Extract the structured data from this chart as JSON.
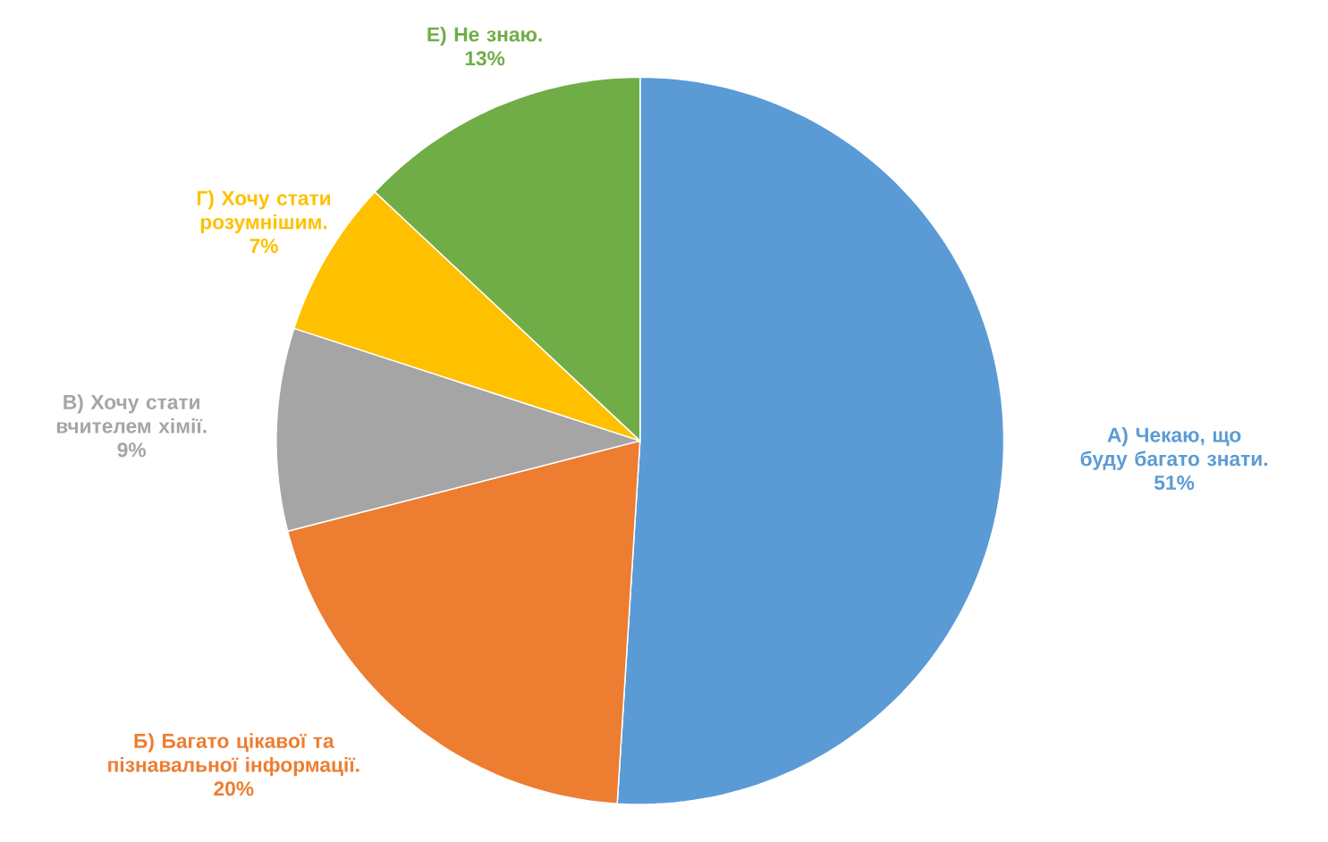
{
  "chart_data": {
    "type": "pie",
    "categories": [
      "А) Чекаю, що буду багато знати.",
      "Б) Багато цікавої та пізнавальної інформації.",
      "В) Хочу стати вчителем хімії.",
      "Г) Хочу стати розумнішим.",
      "Е) Не знаю."
    ],
    "values": [
      51,
      20,
      9,
      7,
      13
    ],
    "colors": [
      "#5b9bd5",
      "#ed7d31",
      "#a5a5a5",
      "#ffc000",
      "#70ad47"
    ],
    "value_labels": [
      "51%",
      "20%",
      "9%",
      "7%",
      "13%"
    ]
  }
}
